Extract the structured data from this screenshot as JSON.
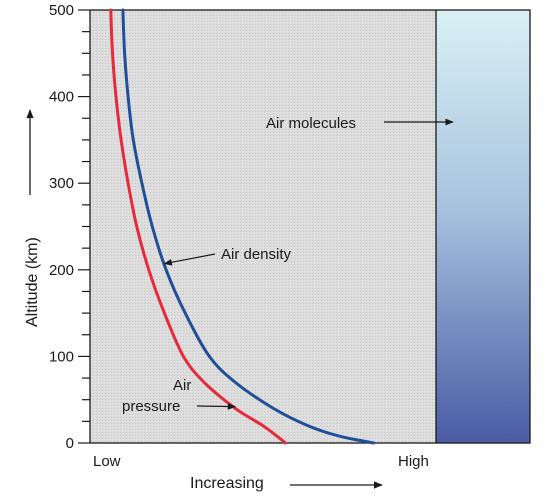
{
  "chart_data": {
    "type": "line",
    "title": "",
    "xlabel": "Increasing",
    "ylabel": "Altitude (km)",
    "xlim": [
      0,
      1
    ],
    "ylim": [
      0,
      500
    ],
    "x_ticks": [
      "Low",
      "High"
    ],
    "y_ticks": [
      0,
      100,
      200,
      300,
      400,
      500
    ],
    "grid": false,
    "series": [
      {
        "name": "Air pressure",
        "color": "#e8293a",
        "points": [
          [
            0.06,
            500
          ],
          [
            0.065,
            450
          ],
          [
            0.075,
            400
          ],
          [
            0.09,
            350
          ],
          [
            0.11,
            300
          ],
          [
            0.135,
            250
          ],
          [
            0.17,
            200
          ],
          [
            0.215,
            150
          ],
          [
            0.27,
            100
          ],
          [
            0.33,
            70
          ],
          [
            0.42,
            40
          ],
          [
            0.5,
            20
          ],
          [
            0.54,
            8
          ],
          [
            0.565,
            0
          ]
        ]
      },
      {
        "name": "Air density",
        "color": "#1f4e9a",
        "points": [
          [
            0.095,
            500
          ],
          [
            0.1,
            450
          ],
          [
            0.11,
            400
          ],
          [
            0.125,
            350
          ],
          [
            0.15,
            300
          ],
          [
            0.18,
            250
          ],
          [
            0.22,
            200
          ],
          [
            0.275,
            150
          ],
          [
            0.345,
            100
          ],
          [
            0.42,
            70
          ],
          [
            0.53,
            40
          ],
          [
            0.63,
            20
          ],
          [
            0.72,
            8
          ],
          [
            0.82,
            0
          ]
        ]
      }
    ],
    "annotations": [
      {
        "text": "Air density",
        "target": [
          0.215,
          207
        ]
      },
      {
        "lines": [
          "Air",
          "pressure"
        ],
        "target": [
          0.42,
          42
        ]
      },
      {
        "text": "Air molecules",
        "target": "gradient-panel"
      }
    ],
    "panel": {
      "label": "Air molecules",
      "gradient_top": "#d9f1f3",
      "gradient_bottom": "#4a5ba3"
    },
    "plot_background": "#d8d8d8"
  }
}
